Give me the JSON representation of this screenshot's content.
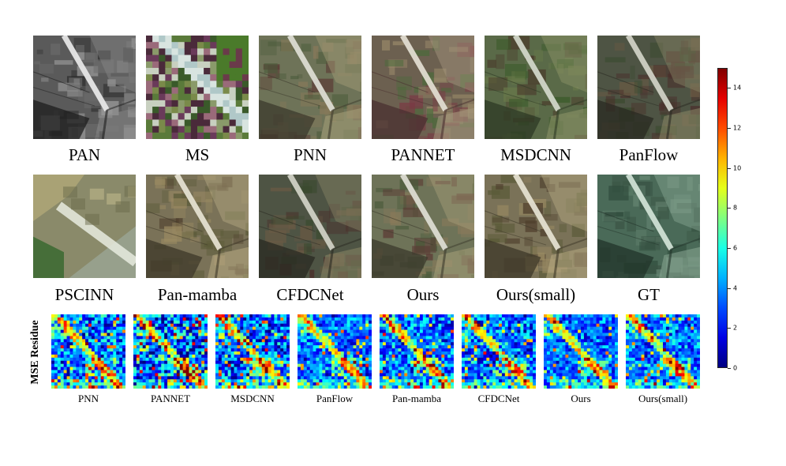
{
  "rows": [
    {
      "id": "row1",
      "panels": [
        {
          "label": "PAN",
          "style": "gray"
        },
        {
          "label": "MS",
          "style": "pixel"
        },
        {
          "label": "PNN",
          "style": "color"
        },
        {
          "label": "PANNET",
          "style": "color-red"
        },
        {
          "label": "MSDCNN",
          "style": "color-green"
        },
        {
          "label": "PanFlow",
          "style": "color-dark"
        }
      ]
    },
    {
      "id": "row2",
      "panels": [
        {
          "label": "PSCINN",
          "style": "blur"
        },
        {
          "label": "Pan-mamba",
          "style": "color-warm"
        },
        {
          "label": "CFDCNet",
          "style": "color-dark"
        },
        {
          "label": "Ours",
          "style": "color"
        },
        {
          "label": "Ours(small)",
          "style": "color-warm"
        },
        {
          "label": "GT",
          "style": "teal"
        }
      ]
    }
  ],
  "residue": {
    "ylabel": "MSE Residue",
    "panels": [
      {
        "label": "PNN"
      },
      {
        "label": "PANNET"
      },
      {
        "label": "MSDCNN"
      },
      {
        "label": "PanFlow"
      },
      {
        "label": "Pan-mamba"
      },
      {
        "label": "CFDCNet"
      },
      {
        "label": "Ours"
      },
      {
        "label": "Ours(small)"
      }
    ]
  },
  "colorbar": {
    "min": 0,
    "max": 15,
    "ticks": [
      "0",
      "2",
      "4",
      "6",
      "8",
      "10",
      "12",
      "14"
    ],
    "colormap": "jet"
  }
}
